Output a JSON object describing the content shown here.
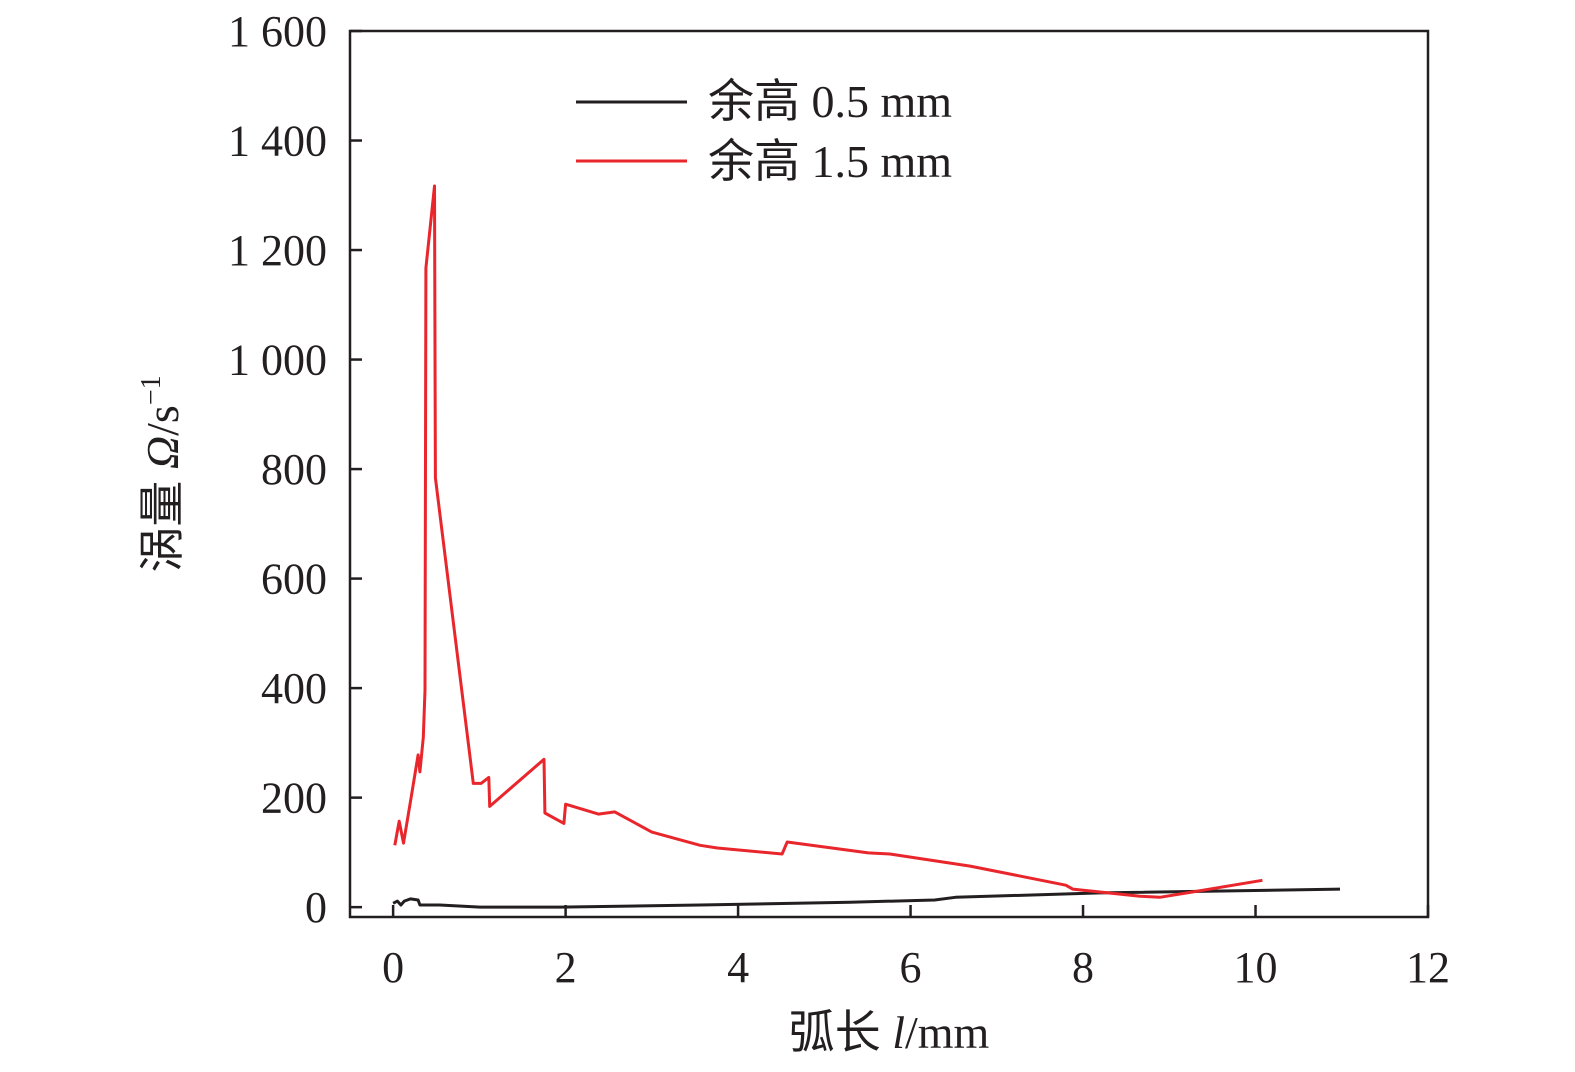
{
  "chart_data": {
    "type": "line",
    "title": "",
    "xlabel_prefix": "弧长 ",
    "xlabel_var": "l",
    "xlabel_unit": "/mm",
    "ylabel_prefix": "涡量 ",
    "ylabel_var": "Ω",
    "ylabel_unit": "/s",
    "ylabel_exp": "−1",
    "xlim": [
      -0.5,
      12
    ],
    "ylim": [
      -18,
      1600
    ],
    "xticks": [
      0,
      2,
      4,
      6,
      8,
      10,
      12
    ],
    "xtick_labels": [
      "0",
      "2",
      "4",
      "6",
      "8",
      "10",
      "12"
    ],
    "yticks": [
      0,
      200,
      400,
      600,
      800,
      1000,
      1200,
      1400,
      1600
    ],
    "ytick_labels": [
      "0",
      "200",
      "400",
      "600",
      "800",
      "1 000",
      "1 200",
      "1 400",
      "1 600"
    ],
    "grid": false,
    "legend_position": "top-center",
    "series": [
      {
        "name": "余高 0.5 mm",
        "color": "#231f20",
        "x": [
          0,
          0.05,
          0.09,
          0.13,
          0.2,
          0.29,
          0.31,
          0.54,
          1.01,
          1.94,
          3.56,
          5.3,
          6.28,
          6.52,
          8.2,
          10.98
        ],
        "y": [
          7,
          11,
          4,
          11,
          15,
          13,
          4,
          4,
          0,
          0,
          4,
          9,
          13,
          18,
          26,
          33
        ]
      },
      {
        "name": "余高 1.5 mm",
        "color": "#e8262b",
        "x": [
          0.02,
          0.07,
          0.12,
          0.21,
          0.29,
          0.31,
          0.35,
          0.37,
          0.38,
          0.48,
          0.49,
          0.93,
          1.02,
          1.11,
          1.12,
          1.75,
          1.76,
          1.98,
          2.0,
          2.38,
          2.57,
          3.0,
          3.56,
          3.76,
          4.51,
          4.57,
          5.51,
          5.76,
          6.69,
          7.8,
          7.88,
          8.66,
          8.89,
          9.24,
          10.08
        ],
        "y": [
          113,
          157,
          117,
          201,
          278,
          247,
          310,
          396,
          1167,
          1317,
          784,
          226,
          226,
          237,
          184,
          270,
          172,
          153,
          188,
          170,
          174,
          137,
          113,
          108,
          97,
          119,
          99,
          97,
          75,
          40,
          33,
          20,
          18,
          27,
          49
        ]
      }
    ]
  }
}
